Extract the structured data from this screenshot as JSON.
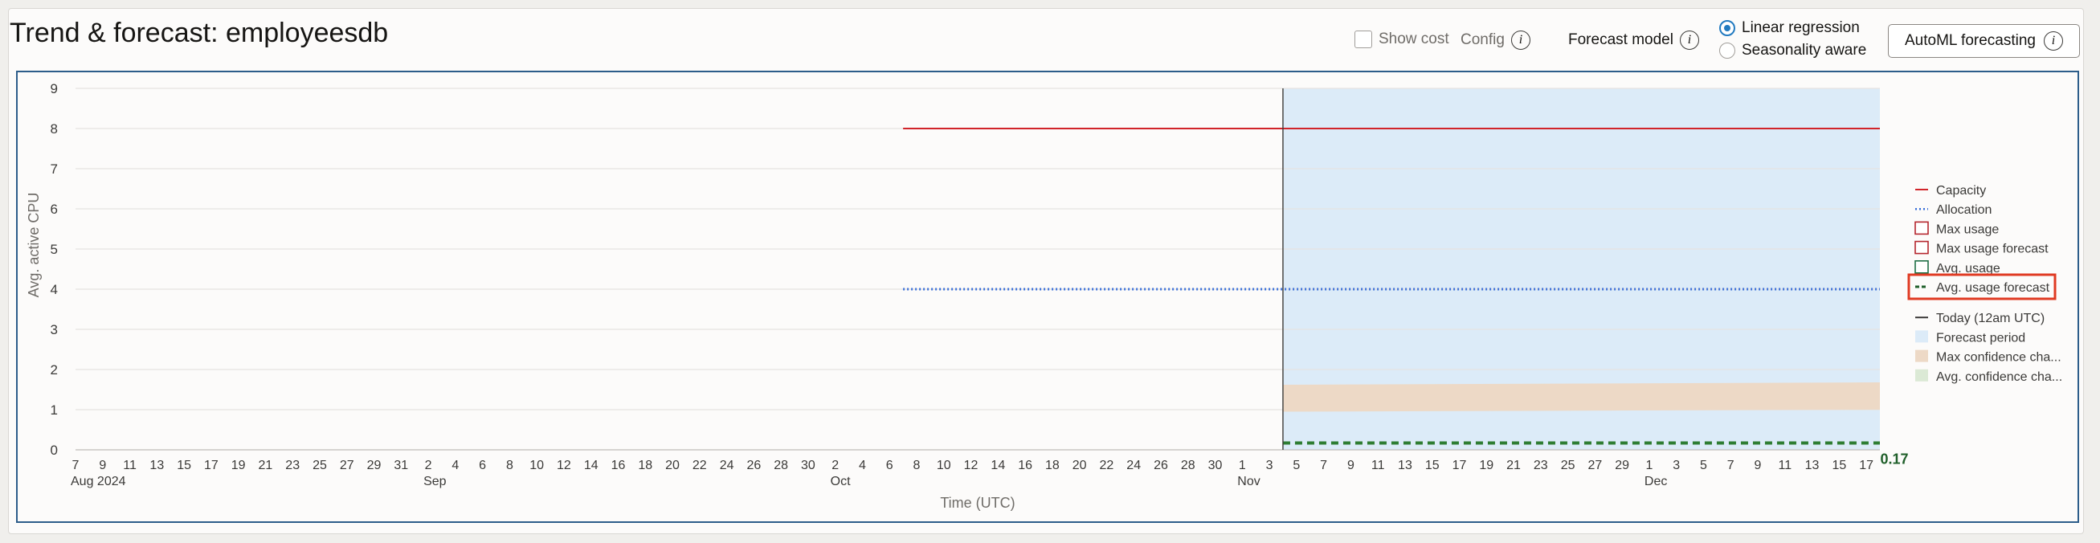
{
  "header": {
    "title": "Trend & forecast: employeesdb",
    "show_cost_label": "Show cost",
    "config_label": "Config",
    "forecast_model_label": "Forecast model",
    "model_options": [
      "Linear regression",
      "Seasonality aware"
    ],
    "selected_model": "Linear regression",
    "automl_button": "AutoML forecasting",
    "info_glyph": "i"
  },
  "chart_data": {
    "type": "line",
    "title": "",
    "xlabel": "Time (UTC)",
    "ylabel": "Avg. active CPU",
    "ylim": [
      0,
      9
    ],
    "yticks": [
      0,
      1,
      2,
      3,
      4,
      5,
      6,
      7,
      8,
      9
    ],
    "x_range": [
      "2024-08-07",
      "2024-12-18"
    ],
    "today": "2024-11-04",
    "forecast_period": [
      "2024-11-04",
      "2024-12-18"
    ],
    "x_tick_labels": [
      "7",
      "9",
      "11",
      "13",
      "15",
      "17",
      "19",
      "21",
      "23",
      "25",
      "27",
      "29",
      "31",
      "2",
      "4",
      "6",
      "8",
      "10",
      "12",
      "14",
      "16",
      "18",
      "20",
      "22",
      "24",
      "26",
      "28",
      "30",
      "2",
      "4",
      "6",
      "8",
      "10",
      "12",
      "14",
      "16",
      "18",
      "20",
      "22",
      "24",
      "26",
      "28",
      "30",
      "1",
      "3",
      "5",
      "7",
      "9",
      "11",
      "13",
      "15",
      "17",
      "19",
      "21",
      "23",
      "25",
      "27",
      "29",
      "1",
      "3",
      "5",
      "7",
      "9",
      "11",
      "13",
      "15",
      "17"
    ],
    "month_labels": [
      {
        "label": "Aug 2024",
        "tick": "7"
      },
      {
        "label": "Sep",
        "tick": "2"
      },
      {
        "label": "Oct",
        "tick": "2"
      },
      {
        "label": "Nov",
        "tick": "1"
      },
      {
        "label": "Dec",
        "tick": "1"
      }
    ],
    "series": [
      {
        "name": "Capacity",
        "x": [
          "2024-10-07",
          "2024-12-18"
        ],
        "values": [
          8,
          8
        ],
        "color": "#d1242a",
        "style": "solid"
      },
      {
        "name": "Allocation",
        "x": [
          "2024-10-07",
          "2024-12-18"
        ],
        "values": [
          4,
          4
        ],
        "color": "#3a6fd8",
        "style": "dotted"
      },
      {
        "name": "Avg. usage forecast",
        "x": [
          "2024-11-04",
          "2024-12-18"
        ],
        "values": [
          0.17,
          0.17
        ],
        "color": "#2e7d32",
        "style": "dashed"
      }
    ],
    "bands": [
      {
        "name": "Max confidence cha...",
        "x": [
          "2024-11-04",
          "2024-12-18"
        ],
        "low": [
          0.95,
          1.0
        ],
        "high": [
          1.62,
          1.68
        ],
        "color": "#edd9c6"
      }
    ],
    "end_value_label": "0.17",
    "legend_position": "right",
    "legend": [
      {
        "label": "Capacity",
        "kind": "line",
        "color": "#d1242a"
      },
      {
        "label": "Allocation",
        "kind": "dotted",
        "color": "#3a6fd8"
      },
      {
        "label": "Max usage",
        "kind": "box",
        "color": "#b5262e"
      },
      {
        "label": "Max usage forecast",
        "kind": "box",
        "color": "#b5262e"
      },
      {
        "label": "Avg. usage",
        "kind": "box",
        "color": "#1f6f45"
      },
      {
        "label": "Avg. usage forecast",
        "kind": "dashed",
        "color": "#1f5f2a",
        "highlighted": true
      },
      {
        "label": "Today (12am UTC)",
        "kind": "line",
        "color": "#3b3a38"
      },
      {
        "label": "Forecast period",
        "kind": "fill",
        "color": "#dcebf8"
      },
      {
        "label": "Max confidence cha...",
        "kind": "fill",
        "color": "#edd9c6"
      },
      {
        "label": "Avg. confidence cha...",
        "kind": "fill",
        "color": "#dbe9d5"
      }
    ],
    "grid": true
  },
  "colors": {
    "border": "#2d5d8a",
    "highlight": "#e03a22",
    "accent": "#227ac0"
  }
}
